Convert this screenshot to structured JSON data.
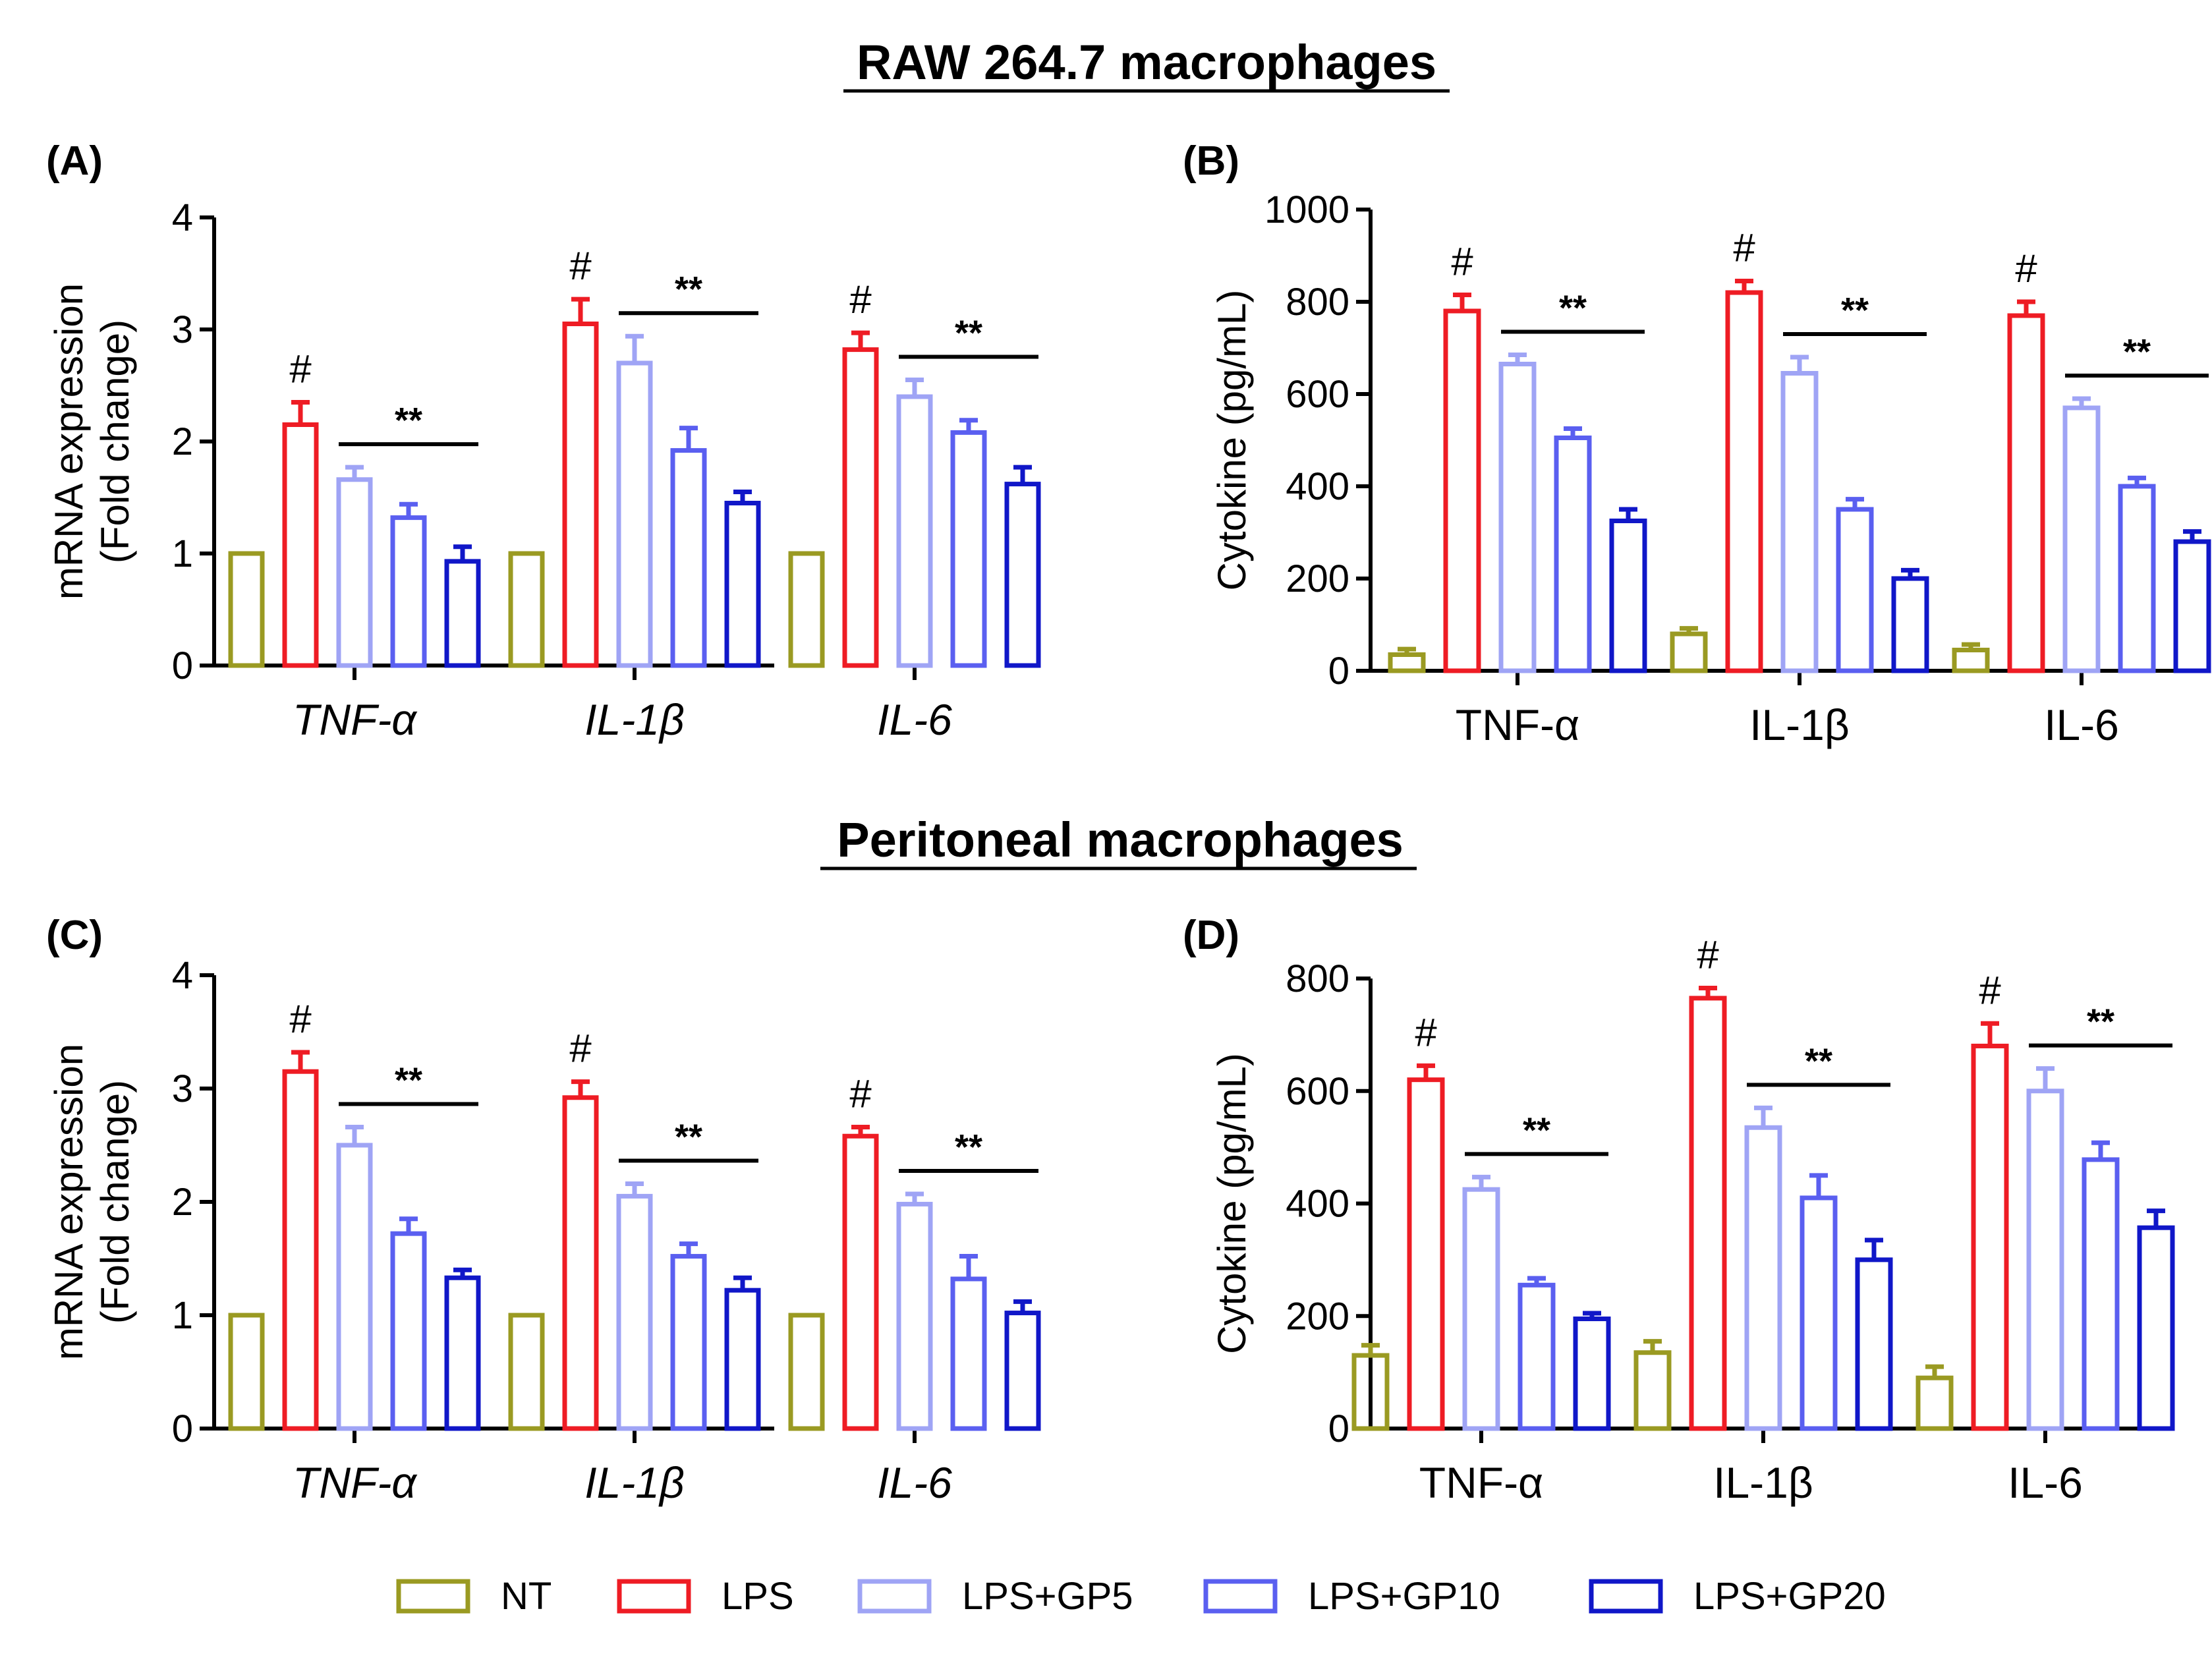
{
  "section_titles": {
    "top": "RAW 264.7 macrophages",
    "bottom": "Peritoneal macrophages"
  },
  "chart_data": [
    {
      "panel": "(A)",
      "type": "bar",
      "title": "",
      "ylabel": [
        "mRNA expression",
        "(Fold change)"
      ],
      "ylim": [
        0,
        4
      ],
      "yticks": [
        0,
        1,
        2,
        3,
        4
      ],
      "categories": [
        "TNF-α",
        "IL-1β",
        "IL-6"
      ],
      "italic_categories": true,
      "series": [
        {
          "name": "NT",
          "values": [
            1.0,
            1.0,
            1.0
          ],
          "errors": [
            0.0,
            0.0,
            0.0
          ]
        },
        {
          "name": "LPS",
          "values": [
            2.15,
            3.05,
            2.82
          ],
          "errors": [
            0.2,
            0.22,
            0.15
          ]
        },
        {
          "name": "LPS+GP5",
          "values": [
            1.66,
            2.7,
            2.4
          ],
          "errors": [
            0.11,
            0.24,
            0.15
          ]
        },
        {
          "name": "LPS+GP10",
          "values": [
            1.32,
            1.92,
            2.08
          ],
          "errors": [
            0.12,
            0.2,
            0.11
          ]
        },
        {
          "name": "LPS+GP20",
          "values": [
            0.93,
            1.45,
            1.62
          ],
          "errors": [
            0.13,
            0.1,
            0.15
          ]
        }
      ],
      "annotations": {
        "hash": "#",
        "stars": "**"
      }
    },
    {
      "panel": "(B)",
      "type": "bar",
      "title": "",
      "ylabel": [
        "Cytokine (pg/mL)"
      ],
      "ylim": [
        0,
        1000
      ],
      "yticks": [
        0,
        200,
        400,
        600,
        800,
        1000
      ],
      "categories": [
        "TNF-α",
        "IL-1β",
        "IL-6"
      ],
      "italic_categories": false,
      "series": [
        {
          "name": "NT",
          "values": [
            35,
            80,
            45
          ],
          "errors": [
            12,
            12,
            12
          ]
        },
        {
          "name": "LPS",
          "values": [
            780,
            820,
            770
          ],
          "errors": [
            35,
            25,
            30
          ]
        },
        {
          "name": "LPS+GP5",
          "values": [
            665,
            645,
            570
          ],
          "errors": [
            20,
            35,
            20
          ]
        },
        {
          "name": "LPS+GP10",
          "values": [
            505,
            350,
            400
          ],
          "errors": [
            20,
            22,
            18
          ]
        },
        {
          "name": "LPS+GP20",
          "values": [
            325,
            200,
            280
          ],
          "errors": [
            25,
            18,
            22
          ]
        }
      ],
      "annotations": {
        "hash": "#",
        "stars": "**"
      }
    },
    {
      "panel": "(C)",
      "type": "bar",
      "title": "",
      "ylabel": [
        "mRNA expression",
        "(Fold change)"
      ],
      "ylim": [
        0,
        4
      ],
      "yticks": [
        0,
        1,
        2,
        3,
        4
      ],
      "categories": [
        "TNF-α",
        "IL-1β",
        "IL-6"
      ],
      "italic_categories": true,
      "series": [
        {
          "name": "NT",
          "values": [
            1.0,
            1.0,
            1.0
          ],
          "errors": [
            0.0,
            0.0,
            0.0
          ]
        },
        {
          "name": "LPS",
          "values": [
            3.15,
            2.92,
            2.58
          ],
          "errors": [
            0.17,
            0.14,
            0.08
          ]
        },
        {
          "name": "LPS+GP5",
          "values": [
            2.5,
            2.05,
            1.98
          ],
          "errors": [
            0.16,
            0.11,
            0.09
          ]
        },
        {
          "name": "LPS+GP10",
          "values": [
            1.72,
            1.52,
            1.32
          ],
          "errors": [
            0.13,
            0.11,
            0.2
          ]
        },
        {
          "name": "LPS+GP20",
          "values": [
            1.33,
            1.22,
            1.02
          ],
          "errors": [
            0.07,
            0.11,
            0.1
          ]
        }
      ],
      "annotations": {
        "hash": "#",
        "stars": "**"
      }
    },
    {
      "panel": "(D)",
      "type": "bar",
      "title": "",
      "ylabel": [
        "Cytokine (pg/mL)"
      ],
      "ylim": [
        0,
        800
      ],
      "yticks": [
        0,
        200,
        400,
        600,
        800
      ],
      "categories": [
        "TNF-α",
        "IL-1β",
        "IL-6"
      ],
      "italic_categories": false,
      "series": [
        {
          "name": "NT",
          "values": [
            130,
            135,
            90
          ],
          "errors": [
            18,
            20,
            20
          ]
        },
        {
          "name": "LPS",
          "values": [
            620,
            765,
            680
          ],
          "errors": [
            25,
            18,
            40
          ]
        },
        {
          "name": "LPS+GP5",
          "values": [
            425,
            535,
            600
          ],
          "errors": [
            22,
            35,
            40
          ]
        },
        {
          "name": "LPS+GP10",
          "values": [
            255,
            410,
            478
          ],
          "errors": [
            12,
            40,
            30
          ]
        },
        {
          "name": "LPS+GP20",
          "values": [
            195,
            300,
            357
          ],
          "errors": [
            10,
            35,
            30
          ]
        }
      ],
      "annotations": {
        "hash": "#",
        "stars": "**"
      }
    }
  ],
  "legend": [
    {
      "name": "NT",
      "color": "#9a9a22"
    },
    {
      "name": "LPS",
      "color": "#ee1c24"
    },
    {
      "name": "LPS+GP5",
      "color": "#9fa4f5"
    },
    {
      "name": "LPS+GP10",
      "color": "#5a5ff0"
    },
    {
      "name": "LPS+GP20",
      "color": "#1017c8"
    }
  ]
}
